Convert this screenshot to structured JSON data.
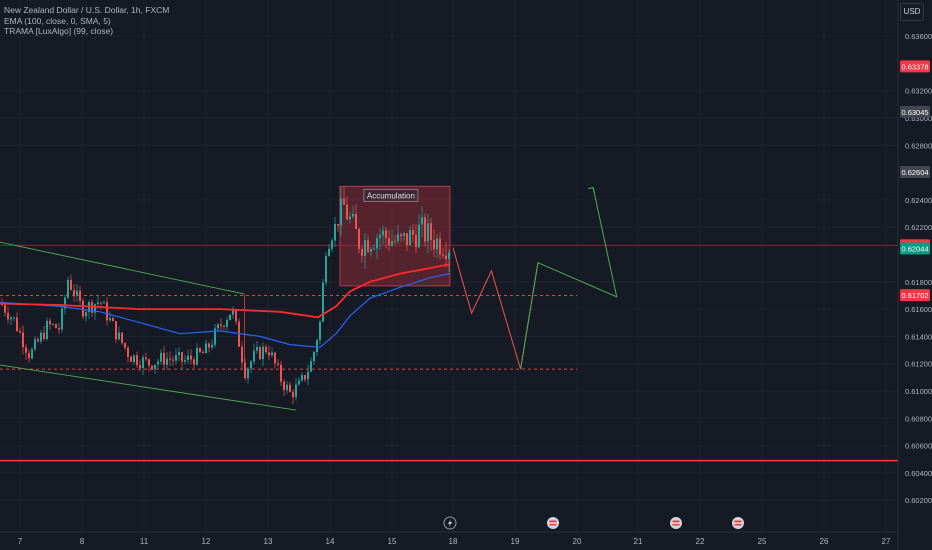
{
  "header": {
    "symbol_title": "New Zealand Dollar / U.S. Dollar, 1h, FXCM",
    "indicator_1": "EMA (100, close, 0, SMA, 5)",
    "indicator_2": "TRAMA [LuxAlgo] (99, close)",
    "currency": "USD"
  },
  "colors": {
    "background": "#161a25",
    "up_candle": "#26a69a",
    "down_candle": "#ef5350",
    "ema_line": "#2962ff",
    "trama_line": "#ff2a2a",
    "projection_down": "#ef5350",
    "projection_up": "#4caf50",
    "zone_fill": "#8a2c36",
    "wedge_line": "#4caf50",
    "support_line": "#ff3b30"
  },
  "chart_data": {
    "type": "candlestick",
    "y_axis": {
      "ticks": [
        "0.63600",
        "0.63200",
        "0.63000",
        "0.62800",
        "0.62400",
        "0.62200",
        "0.61800",
        "0.61600",
        "0.61400",
        "0.61200",
        "0.61000",
        "0.60800",
        "0.60600",
        "0.60400",
        "0.60200"
      ],
      "range": [
        0.6018,
        0.6379
      ]
    },
    "x_axis": {
      "ticks": [
        "7",
        "8",
        "11",
        "12",
        "13",
        "14",
        "15",
        "18",
        "19",
        "20",
        "21",
        "22",
        "25",
        "26",
        "27"
      ]
    },
    "price_badges": [
      {
        "value": "0.63378",
        "color": "#f23645"
      },
      {
        "value": "0.63045",
        "color": "#434651"
      },
      {
        "value": "0.62604",
        "color": "#434651"
      },
      {
        "value": "0.62068",
        "color": "#f23645"
      },
      {
        "value": "0.62044",
        "color": "#089981"
      },
      {
        "value": "0.61702",
        "color": "#f23645"
      }
    ],
    "annotations": {
      "accumulation_label": "Accumulation",
      "accumulation_zone": {
        "x_start": "14",
        "x_end": "18",
        "y_low": 0.6177,
        "y_high": 0.625
      },
      "dashed_levels": [
        0.617,
        0.6116
      ],
      "solid_support_level": 0.6049,
      "current_price_line": 0.62068,
      "wedge_upper": [
        {
          "x": "7",
          "y": 0.6209
        },
        {
          "x": "13",
          "y": 0.6171
        }
      ],
      "wedge_lower": [
        {
          "x": "7",
          "y": 0.6119
        },
        {
          "x": "13",
          "y": 0.6086
        }
      ],
      "projection_path": [
        {
          "x": "18",
          "y": 0.6205
        },
        {
          "x": "18",
          "y": 0.6157
        },
        {
          "x": "18",
          "y": 0.6188
        },
        {
          "x": "19",
          "y": 0.6116
        },
        {
          "x": "19",
          "y": 0.6194
        },
        {
          "x": "20",
          "y": 0.6169
        },
        {
          "x": "20",
          "y": 0.6249
        }
      ],
      "event_markers": [
        "lightning",
        "flag",
        "flag",
        "flag"
      ]
    },
    "ema_series": {
      "name": "EMA (100, close, 0, SMA, 5)",
      "color": "#2962ff"
    },
    "trama_series": {
      "name": "TRAMA [LuxAlgo] (99, close)",
      "color": "#ff2a2a"
    }
  }
}
